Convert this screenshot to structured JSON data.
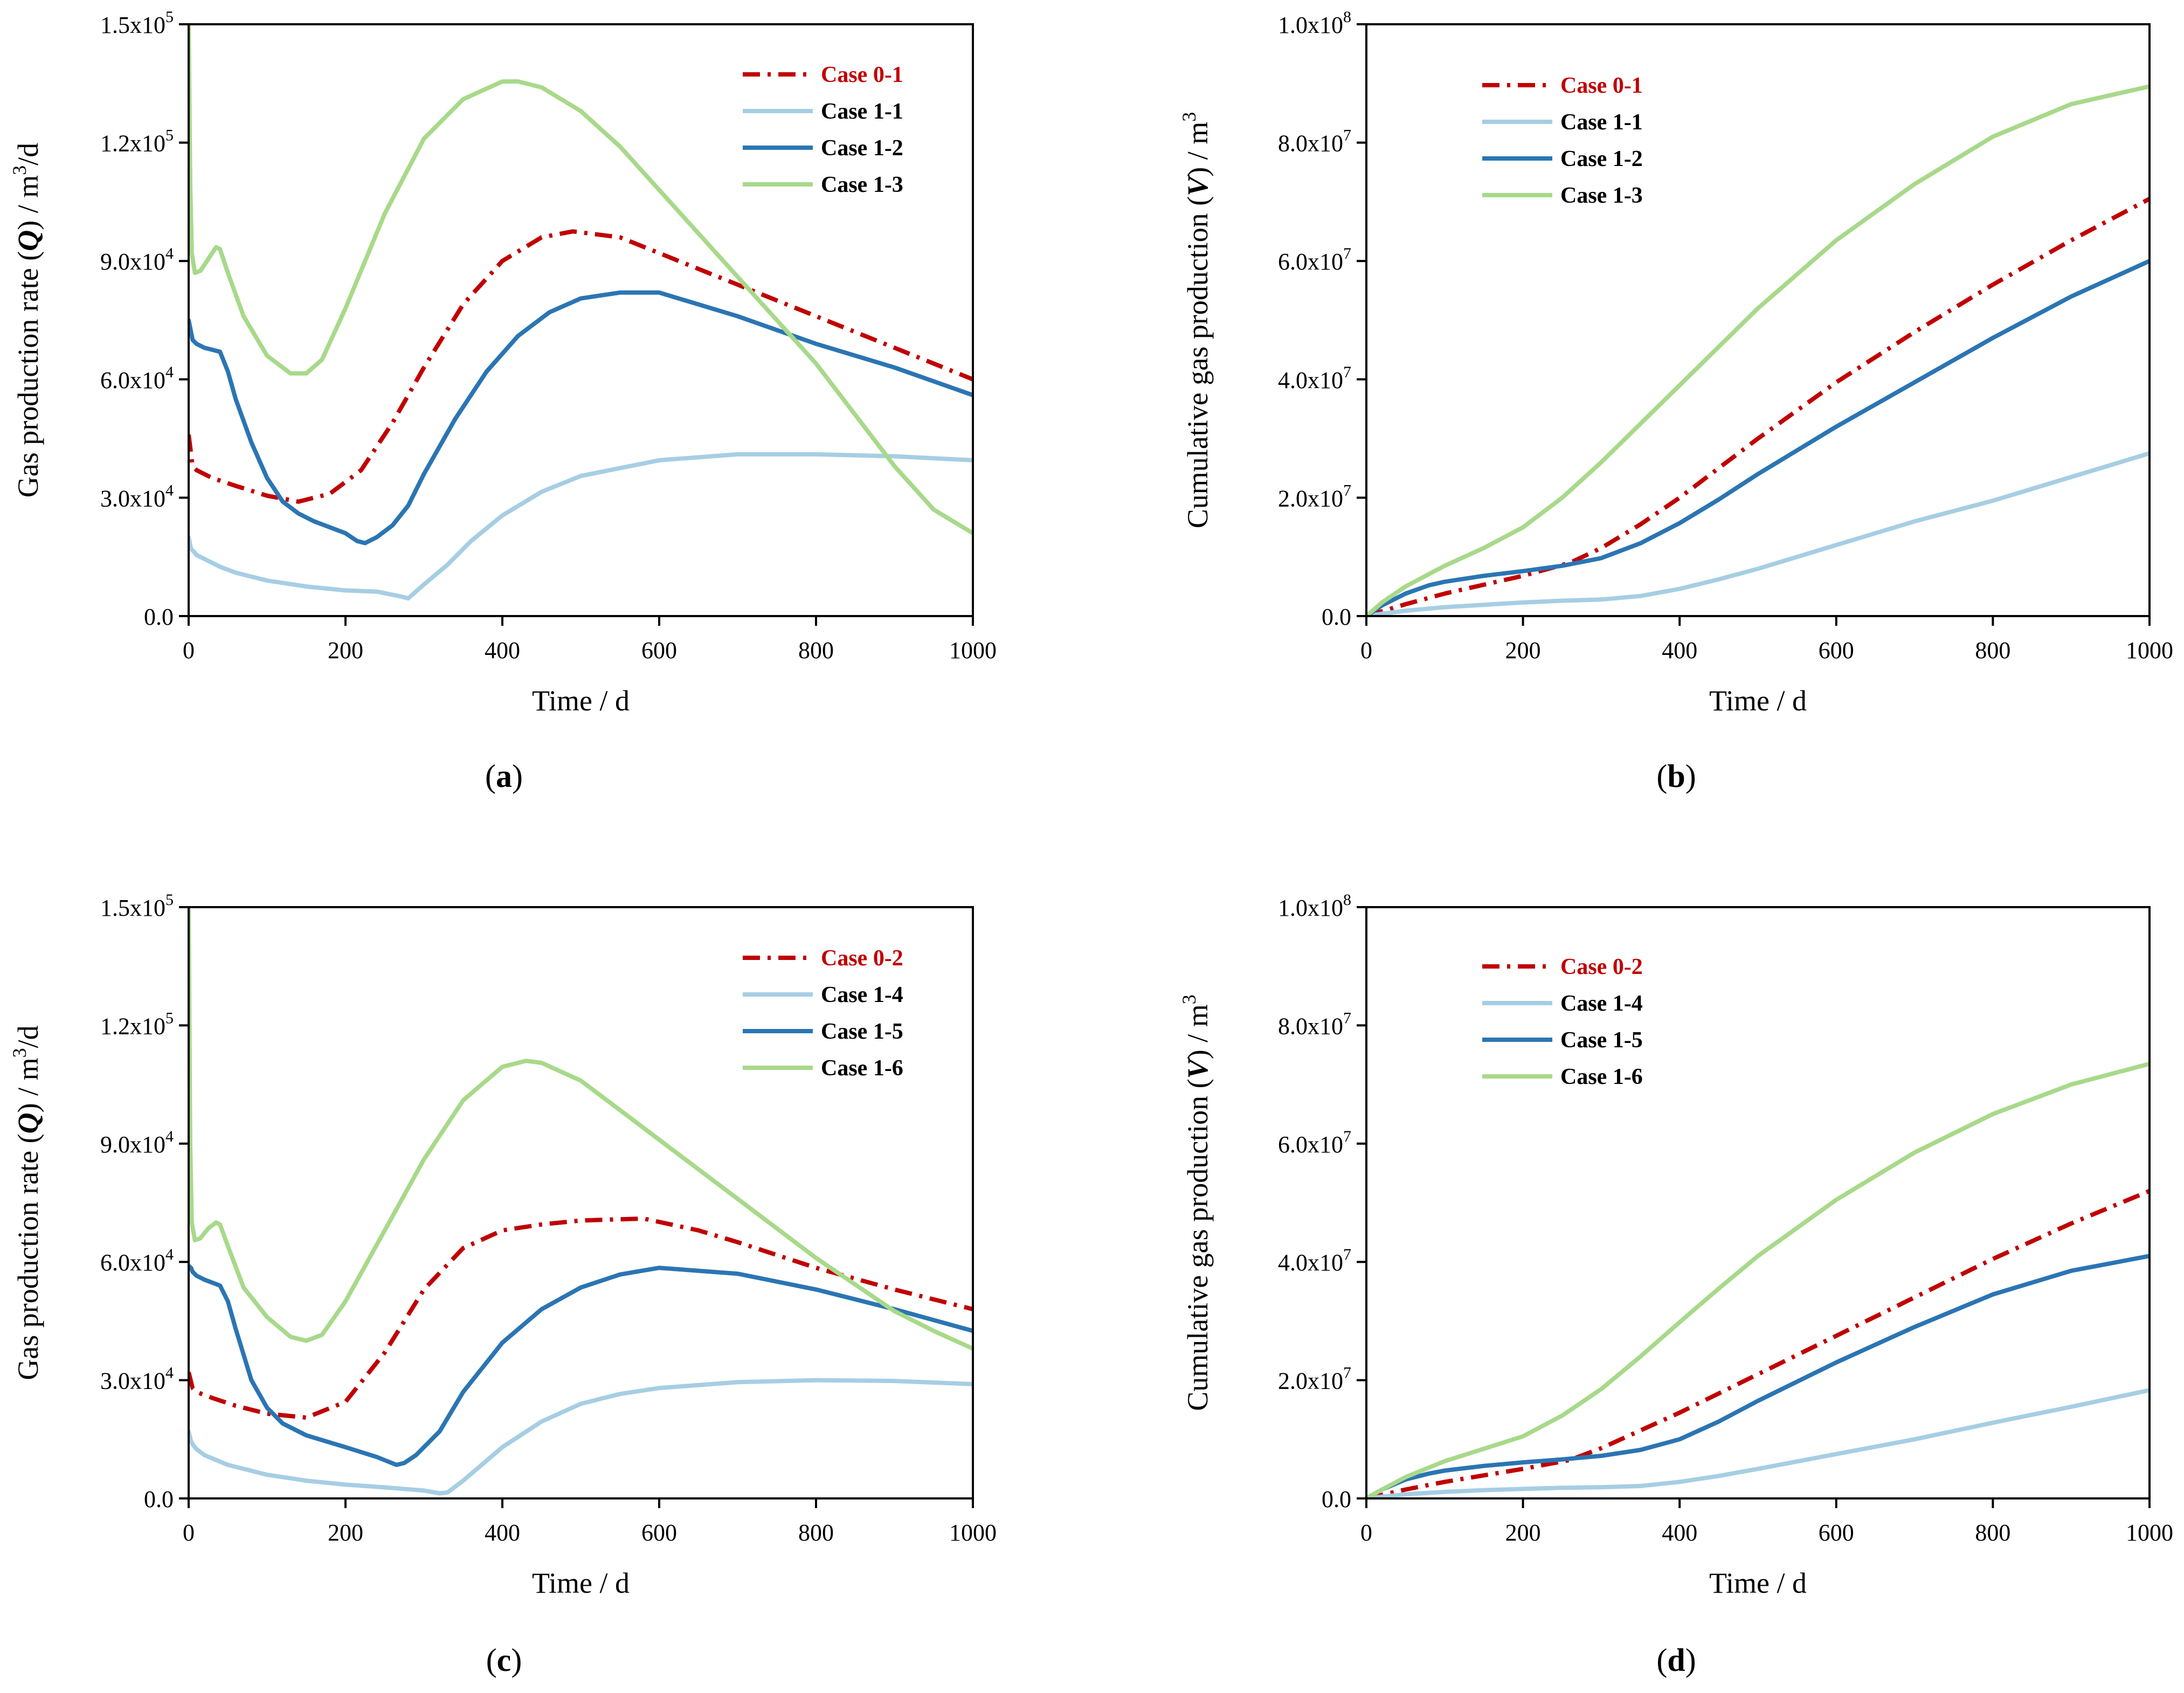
{
  "colors": {
    "case0": "#c00000",
    "light": "#a6cee3",
    "mid": "#2b75b3",
    "green": "#a8d98a",
    "axis": "#000000"
  },
  "chart_data": [
    {
      "type": "line",
      "panel_label": "a",
      "xlabel": "Time / d",
      "ylabel": {
        "pre": "Gas production rate (",
        "ital": "Q",
        "post": ") / m",
        "sup": "3",
        "tail": "/d"
      },
      "xlim": [
        0,
        1000
      ],
      "ylim": [
        0,
        150000
      ],
      "xticks": [
        "0",
        "200",
        "400",
        "600",
        "800",
        "1000"
      ],
      "yticks": [
        {
          "mant": "0.0"
        },
        {
          "mant": "3.0x10",
          "exp": "4"
        },
        {
          "mant": "6.0x10",
          "exp": "4"
        },
        {
          "mant": "9.0x10",
          "exp": "4"
        },
        {
          "mant": "1.2x10",
          "exp": "5"
        },
        {
          "mant": "1.5x10",
          "exp": "5"
        }
      ],
      "series": [
        {
          "name": "Case 0-1",
          "style": "dashdot",
          "color": "#c00000",
          "legend_color": "#c00000",
          "x": [
            0,
            5,
            10,
            30,
            60,
            100,
            140,
            180,
            220,
            260,
            300,
            350,
            400,
            450,
            490,
            550,
            600,
            700,
            800,
            900,
            1000
          ],
          "y": [
            46000,
            38000,
            37000,
            35000,
            33000,
            30500,
            29000,
            31000,
            37000,
            49000,
            63000,
            79000,
            90000,
            96000,
            97500,
            96000,
            92000,
            84000,
            76000,
            68000,
            60000
          ]
        },
        {
          "name": "Case 1-1",
          "style": "solid",
          "color": "#a6cee3",
          "legend_color": "#000000",
          "x": [
            0,
            3,
            6,
            10,
            20,
            40,
            60,
            100,
            150,
            200,
            240,
            270,
            280,
            300,
            330,
            360,
            400,
            450,
            500,
            600,
            700,
            800,
            900,
            1000
          ],
          "y": [
            20000,
            17000,
            16500,
            15500,
            14500,
            12500,
            11000,
            9000,
            7500,
            6500,
            6200,
            5000,
            4500,
            8000,
            13000,
            19000,
            25500,
            31500,
            35500,
            39500,
            41000,
            41000,
            40500,
            39500
          ]
        },
        {
          "name": "Case 1-2",
          "style": "solid",
          "color": "#2b75b3",
          "legend_color": "#000000",
          "x": [
            0,
            3,
            5,
            10,
            20,
            40,
            50,
            60,
            80,
            100,
            120,
            140,
            160,
            200,
            215,
            225,
            240,
            260,
            280,
            300,
            340,
            380,
            420,
            460,
            500,
            550,
            600,
            700,
            800,
            900,
            1000
          ],
          "y": [
            75000,
            72000,
            70000,
            69000,
            68000,
            67000,
            62000,
            55000,
            44000,
            35000,
            29000,
            26000,
            24000,
            21000,
            19000,
            18500,
            20000,
            23000,
            28000,
            36000,
            50000,
            62000,
            71000,
            77000,
            80500,
            82000,
            82000,
            76000,
            69000,
            63000,
            56000
          ]
        },
        {
          "name": "Case 1-3",
          "style": "solid",
          "color": "#a8d98a",
          "legend_color": "#000000",
          "x": [
            0,
            2,
            4,
            8,
            15,
            25,
            35,
            40,
            50,
            70,
            100,
            130,
            150,
            170,
            200,
            250,
            300,
            350,
            400,
            420,
            450,
            500,
            550,
            600,
            700,
            800,
            900,
            950,
            1000
          ],
          "y": [
            150000,
            110000,
            92000,
            87000,
            87500,
            90500,
            93500,
            93000,
            87000,
            76000,
            66000,
            61500,
            61500,
            65000,
            78000,
            102000,
            121000,
            131000,
            135500,
            135500,
            134000,
            128000,
            119000,
            108000,
            86000,
            64000,
            38000,
            27000,
            21000
          ]
        }
      ],
      "legend": {
        "position": "top-right"
      }
    },
    {
      "type": "line",
      "panel_label": "b",
      "xlabel": "Time / d",
      "ylabel": {
        "pre": "Cumulative gas production (",
        "ital": "V",
        "post": ") / m",
        "sup": "3",
        "tail": ""
      },
      "xlim": [
        0,
        1000
      ],
      "ylim": [
        0,
        100000000
      ],
      "xticks": [
        "0",
        "200",
        "400",
        "600",
        "800",
        "1000"
      ],
      "yticks": [
        {
          "mant": "0.0"
        },
        {
          "mant": "2.0x10",
          "exp": "7"
        },
        {
          "mant": "4.0x10",
          "exp": "7"
        },
        {
          "mant": "6.0x10",
          "exp": "7"
        },
        {
          "mant": "8.0x10",
          "exp": "7"
        },
        {
          "mant": "1.0x10",
          "exp": "8"
        }
      ],
      "series": [
        {
          "name": "Case 0-1",
          "style": "dashdot",
          "color": "#c00000",
          "legend_color": "#c00000",
          "x": [
            0,
            50,
            100,
            200,
            260,
            300,
            350,
            400,
            500,
            600,
            700,
            800,
            900,
            1000
          ],
          "y": [
            0,
            2000000,
            3800000,
            6800000,
            9000000,
            11500000,
            15500000,
            20000000,
            30000000,
            39500000,
            48000000,
            56000000,
            63500000,
            70500000
          ]
        },
        {
          "name": "Case 1-1",
          "style": "solid",
          "color": "#a6cee3",
          "legend_color": "#000000",
          "x": [
            0,
            20,
            50,
            100,
            150,
            200,
            250,
            300,
            350,
            400,
            450,
            500,
            600,
            700,
            800,
            900,
            1000
          ],
          "y": [
            0,
            400000,
            900000,
            1500000,
            1900000,
            2300000,
            2600000,
            2800000,
            3400000,
            4600000,
            6200000,
            8000000,
            12000000,
            16000000,
            19500000,
            23500000,
            27500000
          ]
        },
        {
          "name": "Case 1-2",
          "style": "solid",
          "color": "#2b75b3",
          "legend_color": "#000000",
          "x": [
            0,
            20,
            50,
            80,
            100,
            150,
            200,
            250,
            300,
            350,
            400,
            450,
            500,
            600,
            700,
            800,
            900,
            1000
          ],
          "y": [
            0,
            1800000,
            3800000,
            5200000,
            5800000,
            6800000,
            7600000,
            8500000,
            9800000,
            12300000,
            15700000,
            19700000,
            24000000,
            32000000,
            39500000,
            47000000,
            54000000,
            60000000
          ]
        },
        {
          "name": "Case 1-3",
          "style": "solid",
          "color": "#a8d98a",
          "legend_color": "#000000",
          "x": [
            0,
            20,
            50,
            100,
            150,
            200,
            250,
            300,
            350,
            400,
            450,
            500,
            600,
            700,
            800,
            900,
            1000
          ],
          "y": [
            0,
            2300000,
            5000000,
            8500000,
            11500000,
            15000000,
            20000000,
            26000000,
            32500000,
            39000000,
            45500000,
            52000000,
            63500000,
            73000000,
            81000000,
            86500000,
            89500000
          ]
        }
      ],
      "legend": {
        "position": "top-left"
      }
    },
    {
      "type": "line",
      "panel_label": "c",
      "xlabel": "Time / d",
      "ylabel": {
        "pre": "Gas production rate (",
        "ital": "Q",
        "post": ") / m",
        "sup": "3",
        "tail": "/d"
      },
      "xlim": [
        0,
        1000
      ],
      "ylim": [
        0,
        150000
      ],
      "xticks": [
        "0",
        "200",
        "400",
        "600",
        "800",
        "1000"
      ],
      "yticks": [
        {
          "mant": "0.0"
        },
        {
          "mant": "3.0x10",
          "exp": "4"
        },
        {
          "mant": "6.0x10",
          "exp": "4"
        },
        {
          "mant": "9.0x10",
          "exp": "4"
        },
        {
          "mant": "1.2x10",
          "exp": "5"
        },
        {
          "mant": "1.5x10",
          "exp": "5"
        }
      ],
      "series": [
        {
          "name": "Case 0-2",
          "style": "dashdot",
          "color": "#c00000",
          "legend_color": "#c00000",
          "x": [
            0,
            5,
            10,
            30,
            60,
            100,
            150,
            200,
            250,
            300,
            350,
            400,
            450,
            500,
            580,
            650,
            700,
            800,
            900,
            1000
          ],
          "y": [
            32000,
            28000,
            27000,
            25500,
            23500,
            21500,
            20500,
            24500,
            37000,
            53000,
            63500,
            68000,
            69500,
            70500,
            71000,
            68000,
            65000,
            58500,
            53000,
            48000
          ]
        },
        {
          "name": "Case 1-4",
          "style": "solid",
          "color": "#a6cee3",
          "legend_color": "#000000",
          "x": [
            0,
            3,
            6,
            10,
            20,
            50,
            100,
            150,
            200,
            250,
            300,
            320,
            330,
            350,
            400,
            450,
            500,
            550,
            600,
            700,
            800,
            900,
            1000
          ],
          "y": [
            17000,
            14500,
            13500,
            12500,
            11000,
            8500,
            6000,
            4500,
            3500,
            2800,
            2000,
            1300,
            1500,
            4500,
            13000,
            19500,
            24000,
            26500,
            28000,
            29500,
            30000,
            29800,
            29000
          ]
        },
        {
          "name": "Case 1-5",
          "style": "solid",
          "color": "#2b75b3",
          "legend_color": "#000000",
          "x": [
            0,
            3,
            5,
            10,
            20,
            40,
            50,
            60,
            80,
            100,
            120,
            150,
            200,
            240,
            265,
            275,
            290,
            300,
            320,
            350,
            400,
            450,
            500,
            550,
            600,
            700,
            800,
            900,
            1000
          ],
          "y": [
            59000,
            58500,
            57500,
            56500,
            55500,
            54000,
            50000,
            43000,
            30000,
            23000,
            19000,
            16000,
            13000,
            10500,
            8500,
            9000,
            11000,
            13000,
            17000,
            27000,
            39500,
            48000,
            53500,
            56800,
            58500,
            57000,
            53000,
            48000,
            42500
          ]
        },
        {
          "name": "Case 1-6",
          "style": "solid",
          "color": "#a8d98a",
          "legend_color": "#000000",
          "x": [
            0,
            2,
            4,
            8,
            15,
            25,
            35,
            40,
            50,
            70,
            100,
            130,
            150,
            170,
            200,
            250,
            300,
            350,
            400,
            430,
            450,
            500,
            550,
            600,
            700,
            800,
            900,
            950,
            1000
          ],
          "y": [
            150000,
            90000,
            70000,
            65500,
            66000,
            68500,
            70000,
            69500,
            64000,
            53500,
            46000,
            41000,
            40000,
            41500,
            50000,
            68000,
            86000,
            101000,
            109500,
            111000,
            110500,
            106000,
            98500,
            91000,
            76000,
            61000,
            47500,
            42500,
            38000
          ]
        }
      ],
      "legend": {
        "position": "top-right"
      }
    },
    {
      "type": "line",
      "panel_label": "d",
      "xlabel": "Time / d",
      "ylabel": {
        "pre": "Cumulative gas production (",
        "ital": "V",
        "post": ") / m",
        "sup": "3",
        "tail": ""
      },
      "xlim": [
        0,
        1000
      ],
      "ylim": [
        0,
        100000000
      ],
      "xticks": [
        "0",
        "200",
        "400",
        "600",
        "800",
        "1000"
      ],
      "yticks": [
        {
          "mant": "0.0"
        },
        {
          "mant": "2.0x10",
          "exp": "7"
        },
        {
          "mant": "4.0x10",
          "exp": "7"
        },
        {
          "mant": "6.0x10",
          "exp": "7"
        },
        {
          "mant": "8.0x10",
          "exp": "7"
        },
        {
          "mant": "1.0x10",
          "exp": "8"
        }
      ],
      "series": [
        {
          "name": "Case 0-2",
          "style": "dashdot",
          "color": "#c00000",
          "legend_color": "#c00000",
          "x": [
            0,
            50,
            100,
            200,
            260,
            300,
            350,
            400,
            500,
            600,
            700,
            800,
            900,
            1000
          ],
          "y": [
            0,
            1500000,
            2800000,
            5000000,
            6500000,
            8500000,
            11500000,
            14500000,
            21000000,
            27500000,
            34000000,
            40500000,
            46500000,
            52000000
          ]
        },
        {
          "name": "Case 1-4",
          "style": "solid",
          "color": "#a6cee3",
          "legend_color": "#000000",
          "x": [
            0,
            20,
            50,
            100,
            150,
            200,
            250,
            300,
            350,
            400,
            450,
            500,
            600,
            700,
            800,
            900,
            1000
          ],
          "y": [
            0,
            300000,
            700000,
            1100000,
            1400000,
            1600000,
            1800000,
            1900000,
            2100000,
            2800000,
            3800000,
            5000000,
            7500000,
            10000000,
            12800000,
            15500000,
            18300000
          ]
        },
        {
          "name": "Case 1-5",
          "style": "solid",
          "color": "#2b75b3",
          "legend_color": "#000000",
          "x": [
            0,
            20,
            50,
            80,
            100,
            150,
            200,
            250,
            300,
            350,
            400,
            450,
            500,
            600,
            700,
            800,
            900,
            1000
          ],
          "y": [
            0,
            1500000,
            3200000,
            4200000,
            4700000,
            5500000,
            6100000,
            6600000,
            7200000,
            8200000,
            10000000,
            13000000,
            16500000,
            23000000,
            29000000,
            34500000,
            38500000,
            41000000
          ]
        },
        {
          "name": "Case 1-6",
          "style": "solid",
          "color": "#a8d98a",
          "legend_color": "#000000",
          "x": [
            0,
            20,
            50,
            100,
            150,
            200,
            250,
            300,
            350,
            400,
            450,
            500,
            600,
            700,
            800,
            900,
            1000
          ],
          "y": [
            0,
            1500000,
            3600000,
            6300000,
            8400000,
            10500000,
            14000000,
            18500000,
            24000000,
            29800000,
            35500000,
            41000000,
            50500000,
            58500000,
            65000000,
            70000000,
            73500000
          ]
        }
      ],
      "legend": {
        "position": "top-left"
      }
    }
  ]
}
